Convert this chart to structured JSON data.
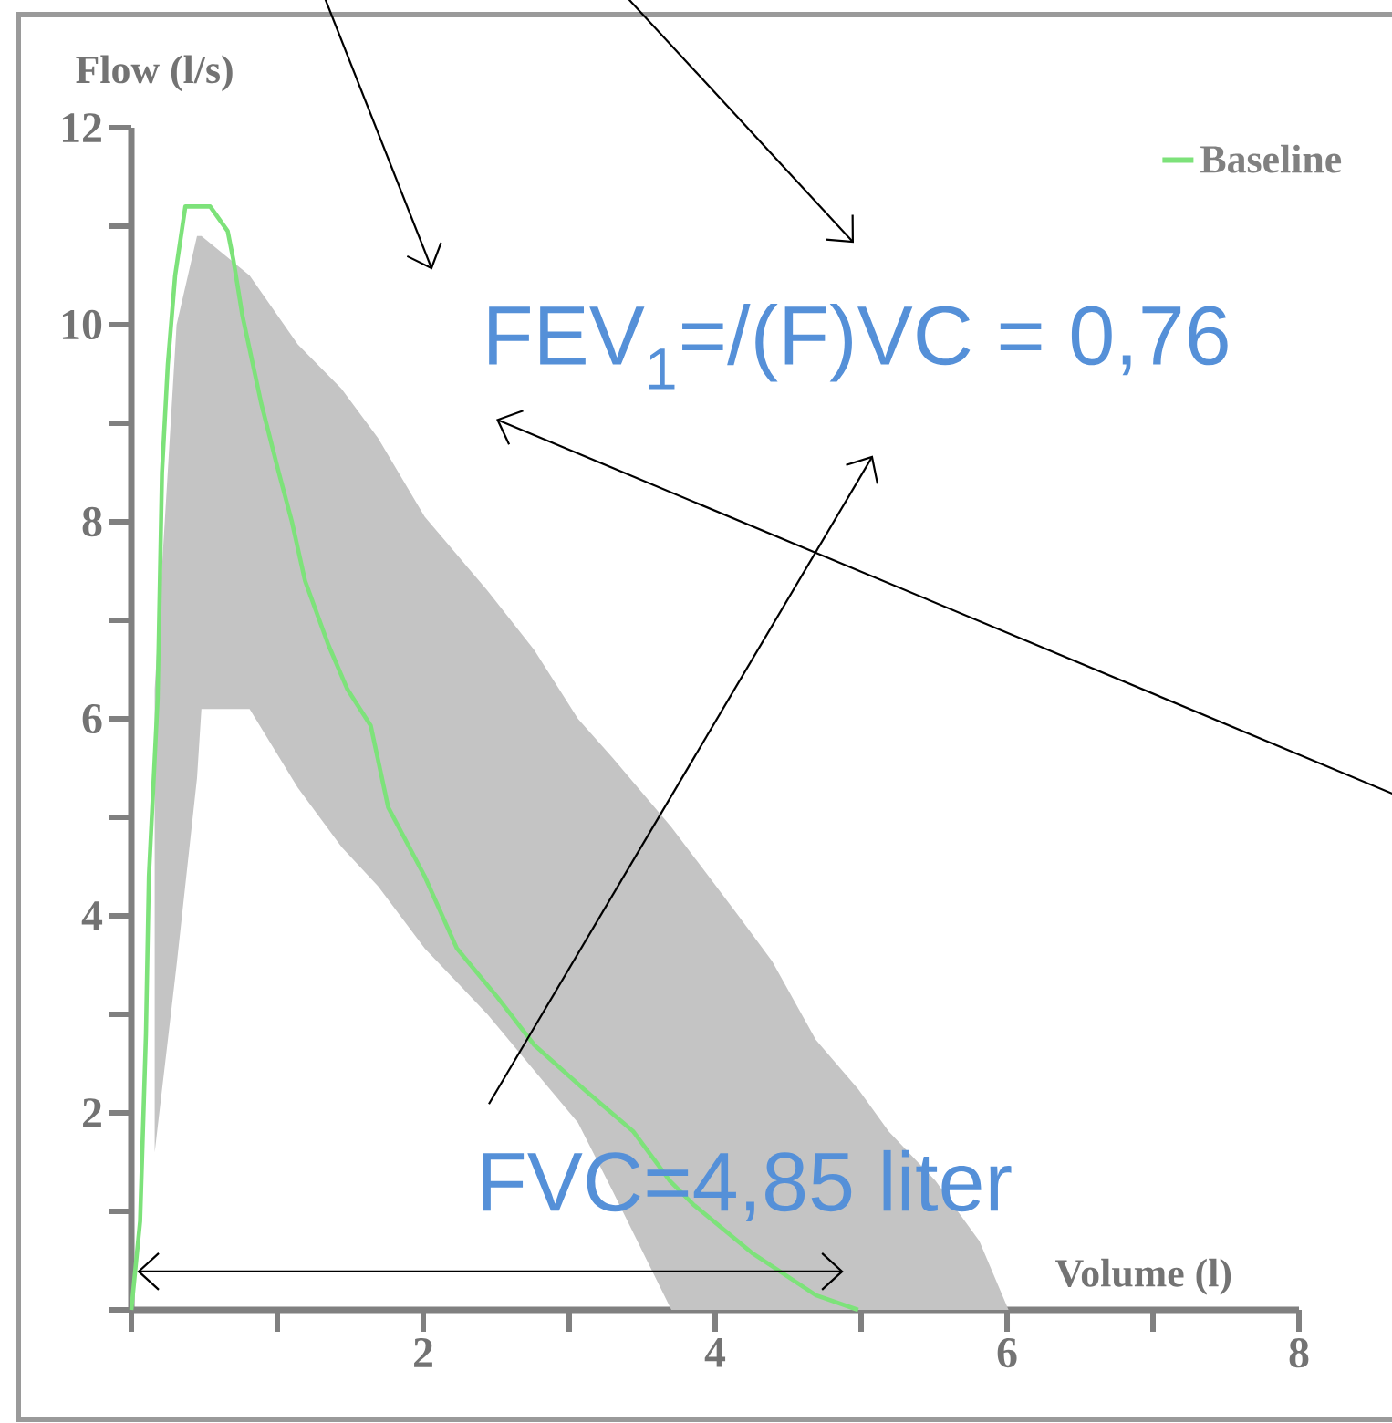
{
  "chart_data": {
    "type": "line",
    "xlabel": "Volume (l)",
    "ylabel": "Flow (l/s)",
    "xlim": [
      0,
      8
    ],
    "ylim": [
      0,
      12
    ],
    "xticks": [
      {
        "value": 0,
        "label": null
      },
      {
        "value": 1,
        "label": null
      },
      2,
      {
        "value": 3,
        "label": null
      },
      4,
      {
        "value": 5,
        "label": null
      },
      6,
      {
        "value": 7,
        "label": null
      },
      8
    ],
    "yticks": [
      {
        "value": 0,
        "label": null
      },
      {
        "value": 1,
        "label": null
      },
      2,
      {
        "value": 3,
        "label": null
      },
      4,
      {
        "value": 5,
        "label": null
      },
      6,
      {
        "value": 7,
        "label": null
      },
      8,
      {
        "value": 9,
        "label": null
      },
      10,
      {
        "value": 11,
        "label": null
      },
      12
    ],
    "legend": "top right",
    "annotations": [
      "FEV$_{1}$=/(F)VC = 0,76",
      "FVC=4,85 liter"
    ],
    "series": [
      {
        "type": "area",
        "color": "#c4c4c4",
        "x": [
          0.16,
          0.31,
          0.45,
          0.48,
          0.81,
          1.14,
          1.44,
          1.69,
          2.01,
          2.44,
          2.76,
          3.06,
          3.3,
          3.7,
          4.14,
          4.39,
          4.69,
          4.98,
          5.19,
          5.51,
          5.81,
          6.01
        ],
        "values": [
          null,
          null,
          null,
          null,
          null,
          null,
          null,
          null,
          null,
          null,
          null,
          null,
          null,
          null,
          null,
          null,
          null,
          null,
          null,
          null,
          null,
          null
        ],
        "upper": [
          6.3,
          10.0,
          10.9,
          10.9,
          10.5,
          9.8,
          9.35,
          8.85,
          8.05,
          7.3,
          6.7,
          6.0,
          5.6,
          4.9,
          4.04,
          3.54,
          2.74,
          2.24,
          1.81,
          1.31,
          0.7,
          0
        ],
        "lower": [
          1.6,
          3.5,
          5.4,
          6.1,
          6.1,
          5.3,
          4.7,
          4.3,
          3.67,
          3.0,
          2.43,
          1.9,
          1.2,
          0,
          0,
          0,
          0,
          0,
          0,
          0,
          0,
          0
        ]
      },
      {
        "name": "Baseline",
        "color": "#7de27a",
        "x": [
          0,
          0.06,
          0.1,
          0.12,
          0.18,
          0.21,
          0.25,
          0.3,
          0.37,
          0.54,
          0.66,
          0.7,
          0.76,
          0.89,
          1.01,
          1.1,
          1.19,
          1.35,
          1.48,
          1.64,
          1.76,
          2.01,
          2.23,
          2.51,
          2.76,
          3.1,
          3.44,
          3.69,
          3.85,
          4.26,
          4.69,
          4.98
        ],
        "values": [
          0,
          0.9,
          2.8,
          4.4,
          6.2,
          8.5,
          9.6,
          10.5,
          11.2,
          11.2,
          10.95,
          10.65,
          10.1,
          9.2,
          8.5,
          8.0,
          7.4,
          6.75,
          6.3,
          5.93,
          5.1,
          4.4,
          3.67,
          3.17,
          2.69,
          2.24,
          1.81,
          1.31,
          1.07,
          0.57,
          0.15,
          0
        ]
      }
    ]
  }
}
